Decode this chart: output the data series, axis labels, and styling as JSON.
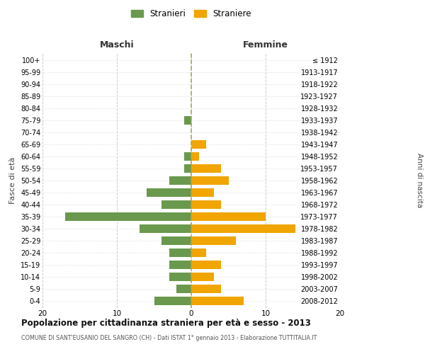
{
  "age_groups": [
    "100+",
    "95-99",
    "90-94",
    "85-89",
    "80-84",
    "75-79",
    "70-74",
    "65-69",
    "60-64",
    "55-59",
    "50-54",
    "45-49",
    "40-44",
    "35-39",
    "30-34",
    "25-29",
    "20-24",
    "15-19",
    "10-14",
    "5-9",
    "0-4"
  ],
  "anni_nascita": [
    "≤ 1912",
    "1913-1917",
    "1918-1922",
    "1923-1927",
    "1928-1932",
    "1933-1937",
    "1938-1942",
    "1943-1947",
    "1948-1952",
    "1953-1957",
    "1958-1962",
    "1963-1967",
    "1968-1972",
    "1973-1977",
    "1978-1982",
    "1983-1987",
    "1988-1992",
    "1993-1997",
    "1998-2002",
    "2003-2007",
    "2008-2012"
  ],
  "maschi": [
    0,
    0,
    0,
    0,
    0,
    1,
    0,
    0,
    1,
    1,
    3,
    6,
    4,
    17,
    7,
    4,
    3,
    3,
    3,
    2,
    5
  ],
  "femmine": [
    0,
    0,
    0,
    0,
    0,
    0,
    0,
    2,
    1,
    4,
    5,
    3,
    4,
    10,
    14,
    6,
    2,
    4,
    3,
    4,
    7
  ],
  "maschi_color": "#6a994e",
  "femmine_color": "#f0a500",
  "title": "Popolazione per cittadinanza straniera per età e sesso - 2013",
  "subtitle": "COMUNE DI SANT'EUSANIO DEL SANGRO (CH) - Dati ISTAT 1° gennaio 2013 - Elaborazione TUTTITALIA.IT",
  "ylabel_left": "Fasce di età",
  "ylabel_right": "Anni di nascita",
  "xlabel_left": "Maschi",
  "xlabel_right": "Femmine",
  "legend_maschi": "Stranieri",
  "legend_femmine": "Straniere",
  "xlim": 20,
  "background_color": "#ffffff",
  "grid_color": "#cccccc",
  "center_line_color": "#aaa860"
}
